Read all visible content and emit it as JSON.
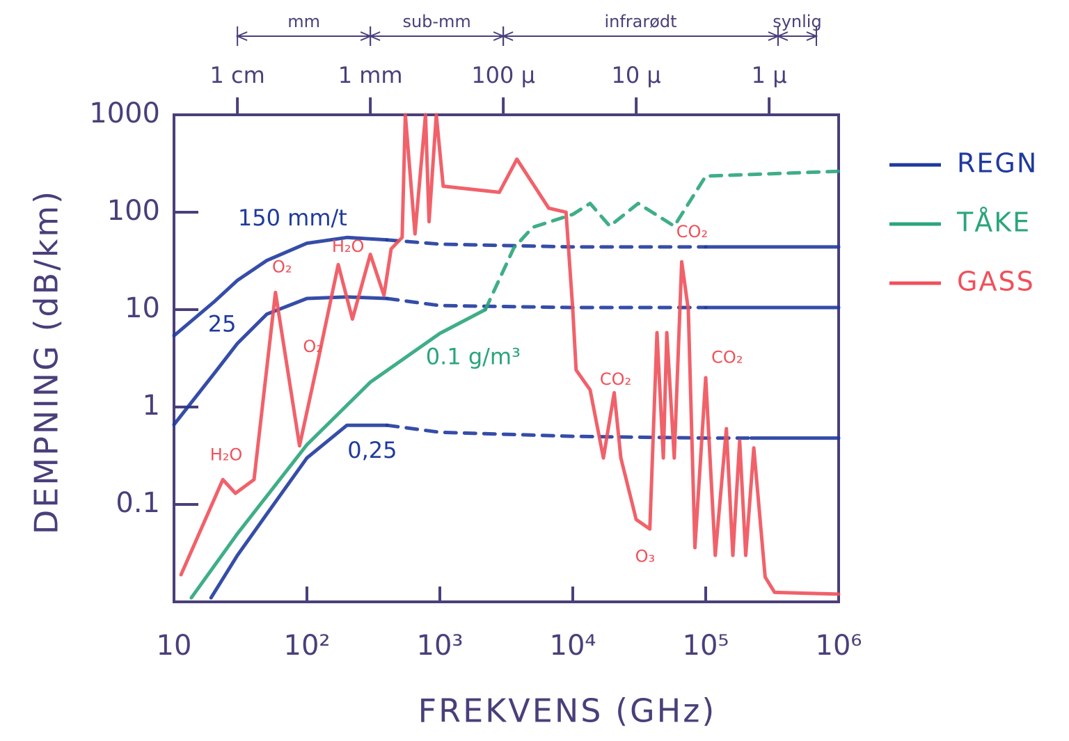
{
  "chart_data": {
    "type": "line",
    "xlabel": "FREKVENS (GHz)",
    "ylabel": "DEMPNING (dB/km)",
    "xscale": "log",
    "yscale": "log",
    "xlim": [
      10,
      1000000
    ],
    "ylim": [
      0.01,
      1000
    ],
    "xticks": [
      10,
      {
        "value": 100,
        "label": "10²"
      },
      {
        "value": 1000,
        "label": "10³"
      },
      {
        "value": 10000,
        "label": "10⁴"
      },
      {
        "value": 100000,
        "label": "10⁵"
      },
      {
        "value": 1000000,
        "label": "10⁶"
      }
    ],
    "yticks": [
      0.1,
      1,
      10,
      100,
      1000
    ],
    "x2ticks": [
      {
        "value": 30,
        "label": "1 cm"
      },
      {
        "value": 300,
        "label": "1 mm"
      },
      {
        "value": 3000,
        "label": "100 μ"
      },
      {
        "value": 30000,
        "label": "10 μ"
      },
      {
        "value": 300000,
        "label": "1 μ"
      }
    ],
    "bands": [
      {
        "label": "mm",
        "from": 30,
        "to": 300
      },
      {
        "label": "sub-mm",
        "from": 300,
        "to": 3000
      },
      {
        "label": "infrarødt",
        "from": 3000,
        "to": 350000
      },
      {
        "label": "synlig",
        "from": 350000,
        "to": 680000
      }
    ],
    "legend": "right",
    "series": [
      {
        "name": "REGN",
        "color": "#1f3a9e",
        "curves": [
          {
            "label": "150 mm/t",
            "label_x": 78,
            "label_y": 85,
            "dash_x": [
              450,
              100000
            ],
            "x": [
              10,
              20,
              30,
              50,
              100,
              200,
              400,
              1000,
              10000,
              100000,
              1000000
            ],
            "values": [
              5.4,
              12,
              20,
              32,
              48,
              55,
              52,
              47,
              44,
              44,
              44
            ]
          },
          {
            "label": "25",
            "label_x": 23,
            "label_y": 6.9,
            "dash_x": [
              450,
              100000
            ],
            "x": [
              10,
              20,
              30,
              50,
              100,
              200,
              400,
              1000,
              10000,
              100000,
              1000000
            ],
            "values": [
              0.66,
              2.2,
              4.5,
              9,
              13,
              13.5,
              13,
              11,
              10.5,
              10.5,
              10.5
            ]
          },
          {
            "label": "0,25",
            "label_x": 310,
            "label_y": 0.35,
            "dash_x": [
              600,
              220000
            ],
            "x": [
              19,
              30,
              50,
              100,
              200,
              400,
              1000,
              10000,
              100000,
              220000,
              1000000
            ],
            "values": [
              0.011,
              0.03,
              0.08,
              0.3,
              0.65,
              0.65,
              0.55,
              0.5,
              0.48,
              0.48,
              0.48
            ]
          }
        ]
      },
      {
        "name": "TÅKE",
        "color": "#2aa57a",
        "curves": [
          {
            "label": "0.1 g/m³",
            "label_x": 1780,
            "label_y": 3.2,
            "dash_x": [
              2200,
              1000000
            ],
            "x": [
              13.5,
              30,
              100,
              300,
              1000,
              2200,
              3600,
              5000,
              10000,
              13500,
              19000,
              31000,
              58000,
              100000,
              1000000
            ],
            "values": [
              0.011,
              0.05,
              0.41,
              1.8,
              5.7,
              10,
              43,
              70,
              95,
              123,
              72,
              123,
              72,
              235,
              263
            ]
          }
        ]
      },
      {
        "name": "GASS",
        "color": "#f0505a",
        "curves": [
          {
            "x": [
              11.3,
              23.3,
              29,
              40,
              58,
              88,
              120,
              172,
              220,
              300,
              380,
              430,
              520,
              550,
              650,
              780,
              830,
              940,
              1060,
              2800,
              3800,
              6600,
              8900,
              10000,
              10600,
              13500,
              17000,
              20500,
              23000,
              30000,
              38000,
              43000,
              48000,
              51000,
              58000,
              66000,
              74000,
              83000,
              100000,
              118000,
              143000,
              160000,
              180000,
              200000,
              230000,
              280000,
              330000,
              1000000
            ],
            "values": [
              0.019,
              0.18,
              0.13,
              0.18,
              15,
              0.4,
              2.8,
              29,
              8,
              37,
              14,
              42,
              55,
              1000,
              60,
              1000,
              80,
              1000,
              185,
              160,
              350,
              110,
              100,
              10,
              2.4,
              1.5,
              0.3,
              1.4,
              0.3,
              0.07,
              0.056,
              5.8,
              0.3,
              5.8,
              0.3,
              31,
              10,
              0.036,
              2.0,
              0.03,
              0.6,
              0.03,
              0.45,
              0.03,
              0.38,
              0.018,
              0.0125,
              0.012
            ]
          }
        ]
      }
    ],
    "annotations": [
      {
        "text": "H₂O",
        "x": 24.7,
        "y": 0.32,
        "color": "#f0505a"
      },
      {
        "text": "O₂",
        "x": 65,
        "y": 27,
        "color": "#f0505a"
      },
      {
        "text": "O₂",
        "x": 111,
        "y": 4.1,
        "color": "#f0505a"
      },
      {
        "text": "H₂O",
        "x": 204,
        "y": 44,
        "color": "#f0505a"
      },
      {
        "text": "CO₂",
        "x": 21000,
        "y": 1.9,
        "color": "#f0505a"
      },
      {
        "text": "O₃",
        "x": 35000,
        "y": 0.029,
        "color": "#f0505a"
      },
      {
        "text": "CO₂",
        "x": 79000,
        "y": 62,
        "color": "#f0505a"
      },
      {
        "text": "CO₂",
        "x": 145000,
        "y": 3.2,
        "color": "#f0505a"
      }
    ]
  }
}
